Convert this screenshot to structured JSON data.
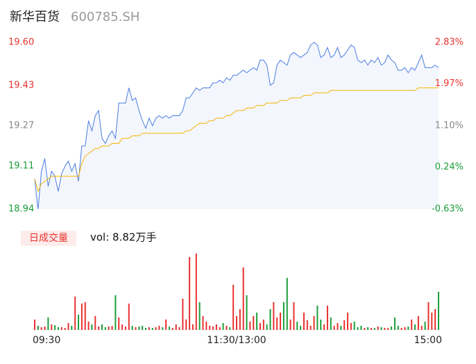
{
  "header": {
    "title": "新华百货",
    "code": "600785.SH"
  },
  "chart_data": [
    {
      "type": "line",
      "x": [
        0,
        2,
        4,
        6,
        8,
        10,
        12,
        14,
        16,
        18,
        20,
        22,
        24,
        26,
        28,
        30,
        32,
        34,
        36,
        38,
        40,
        42,
        44,
        46,
        48,
        50,
        52,
        54,
        56,
        58,
        60,
        62,
        64,
        66,
        68,
        70,
        72,
        74,
        76,
        78,
        80,
        82,
        84,
        86,
        88,
        90,
        92,
        94,
        96,
        98,
        100,
        102,
        104,
        106,
        108,
        110,
        112,
        114,
        116,
        118,
        120,
        122,
        124,
        126,
        128,
        130,
        132,
        134,
        136,
        138,
        140,
        142,
        144,
        146,
        148,
        150,
        152,
        154,
        156,
        158,
        160,
        162,
        164,
        166,
        168,
        170,
        172,
        174,
        176,
        178,
        180,
        182,
        184,
        186,
        188,
        190,
        192,
        194,
        196,
        198,
        200,
        202,
        204,
        206,
        208,
        210,
        212,
        214,
        216,
        218,
        220,
        222,
        224,
        226,
        228,
        230,
        232,
        234,
        236,
        238,
        240
      ],
      "series": [
        {
          "color": "#4a7de0",
          "values": [
            19.06,
            18.94,
            19.09,
            19.14,
            19.03,
            19.09,
            19.07,
            19.01,
            19.08,
            19.11,
            19.13,
            19.09,
            19.12,
            19.05,
            19.19,
            19.19,
            19.29,
            19.25,
            19.31,
            19.33,
            19.22,
            19.2,
            19.23,
            19.25,
            19.22,
            19.36,
            19.36,
            19.36,
            19.42,
            19.37,
            19.38,
            19.33,
            19.29,
            19.26,
            19.3,
            19.27,
            19.3,
            19.31,
            19.3,
            19.31,
            19.3,
            19.31,
            19.31,
            19.31,
            19.33,
            19.38,
            19.38,
            19.4,
            19.42,
            19.41,
            19.42,
            19.42,
            19.42,
            19.44,
            19.44,
            19.45,
            19.44,
            19.46,
            19.45,
            19.47,
            19.47,
            19.48,
            19.49,
            19.48,
            19.49,
            19.5,
            19.49,
            19.53,
            19.53,
            19.51,
            19.43,
            19.44,
            19.51,
            19.53,
            19.52,
            19.51,
            19.55,
            19.56,
            19.55,
            19.54,
            19.55,
            19.56,
            19.59,
            19.6,
            19.59,
            19.54,
            19.55,
            19.58,
            19.54,
            19.55,
            19.58,
            19.54,
            19.55,
            19.57,
            19.59,
            19.58,
            19.53,
            19.52,
            19.53,
            19.51,
            19.53,
            19.52,
            19.54,
            19.51,
            19.52,
            19.55,
            19.53,
            19.52,
            19.49,
            19.49,
            19.5,
            19.48,
            19.5,
            19.49,
            19.52,
            19.55,
            19.5,
            19.5,
            19.5,
            19.51,
            19.5
          ]
        },
        {
          "color": "#f5b400",
          "values": [
            19.06,
            19.01,
            19.04,
            19.05,
            19.06,
            19.07,
            19.07,
            19.07,
            19.07,
            19.07,
            19.07,
            19.07,
            19.07,
            19.07,
            19.12,
            19.15,
            19.16,
            19.17,
            19.18,
            19.18,
            19.19,
            19.19,
            19.19,
            19.2,
            19.2,
            19.2,
            19.22,
            19.22,
            19.22,
            19.23,
            19.23,
            19.23,
            19.24,
            19.24,
            19.24,
            19.24,
            19.24,
            19.24,
            19.24,
            19.24,
            19.24,
            19.24,
            19.24,
            19.24,
            19.24,
            19.25,
            19.25,
            19.26,
            19.27,
            19.28,
            19.28,
            19.28,
            19.29,
            19.29,
            19.3,
            19.3,
            19.3,
            19.31,
            19.31,
            19.32,
            19.33,
            19.33,
            19.33,
            19.34,
            19.34,
            19.34,
            19.35,
            19.35,
            19.35,
            19.36,
            19.36,
            19.36,
            19.36,
            19.37,
            19.37,
            19.37,
            19.38,
            19.38,
            19.38,
            19.38,
            19.39,
            19.39,
            19.39,
            19.4,
            19.4,
            19.4,
            19.4,
            19.4,
            19.41,
            19.41,
            19.41,
            19.41,
            19.41,
            19.41,
            19.41,
            19.41,
            19.41,
            19.41,
            19.41,
            19.41,
            19.41,
            19.41,
            19.41,
            19.41,
            19.41,
            19.41,
            19.41,
            19.41,
            19.41,
            19.41,
            19.41,
            19.41,
            19.41,
            19.41,
            19.42,
            19.42,
            19.42,
            19.42,
            19.42,
            19.42,
            19.42
          ]
        }
      ],
      "xlim": [
        0,
        240
      ],
      "ylim": [
        18.94,
        19.6
      ],
      "yticks": [
        {
          "value": 19.6,
          "label": "19.60"
        },
        19.43,
        19.27,
        19.11,
        18.94
      ],
      "ytick_colors": [
        "#e8312f",
        "#e8312f",
        "#888888",
        "#1a9e3a",
        "#1a9e3a"
      ],
      "y2lim": [
        -0.63,
        2.83
      ],
      "y2ticks": [
        {
          "value": 2.83,
          "label": "2.83%"
        },
        {
          "value": 1.97,
          "label": "1.97%"
        },
        {
          "value": 1.1,
          "label": "1.10%"
        },
        {
          "value": 0.24,
          "label": "0.24%"
        },
        {
          "value": -0.63,
          "label": "-0.63%"
        }
      ],
      "y2tick_colors": [
        "#e8312f",
        "#e8312f",
        "#888888",
        "#1a9e3a",
        "#1a9e3a"
      ],
      "area_color": "#f3f6fd"
    },
    {
      "type": "bar",
      "button": "日成交量",
      "label": "vol: 8.82万手",
      "x": [
        0,
        2,
        4,
        6,
        8,
        10,
        12,
        14,
        16,
        18,
        20,
        22,
        24,
        26,
        28,
        30,
        32,
        34,
        36,
        38,
        40,
        42,
        44,
        46,
        48,
        50,
        52,
        54,
        56,
        58,
        60,
        62,
        64,
        66,
        68,
        70,
        72,
        74,
        76,
        78,
        80,
        82,
        84,
        86,
        88,
        90,
        92,
        94,
        96,
        98,
        100,
        102,
        104,
        106,
        108,
        110,
        112,
        114,
        116,
        118,
        120,
        122,
        124,
        126,
        128,
        130,
        132,
        134,
        136,
        138,
        140,
        142,
        144,
        146,
        148,
        150,
        152,
        154,
        156,
        158,
        160,
        162,
        164,
        166,
        168,
        170,
        172,
        174,
        176,
        178,
        180,
        182,
        184,
        186,
        188,
        190,
        192,
        194,
        196,
        198,
        200,
        202,
        204,
        206,
        208,
        210,
        212,
        214,
        216,
        218,
        220,
        222,
        224,
        226,
        228,
        230,
        232,
        234,
        236,
        238,
        240
      ],
      "values": [
        750,
        300,
        200,
        250,
        900,
        400,
        350,
        200,
        200,
        150,
        500,
        300,
        2400,
        1100,
        1900,
        2000,
        600,
        400,
        1000,
        250,
        400,
        200,
        250,
        300,
        2500,
        900,
        400,
        250,
        1900,
        300,
        200,
        250,
        300,
        150,
        200,
        150,
        200,
        300,
        200,
        750,
        250,
        150,
        400,
        200,
        2250,
        750,
        5250,
        400,
        5500,
        2000,
        1000,
        600,
        300,
        250,
        400,
        200,
        500,
        300,
        200,
        3250,
        1000,
        1500,
        4500,
        2500,
        600,
        1000,
        1250,
        500,
        750,
        400,
        1500,
        2000,
        900,
        1250,
        2000,
        3750,
        750,
        2000,
        600,
        300,
        1250,
        700,
        300,
        1000,
        1750,
        750,
        400,
        1750,
        900,
        300,
        500,
        300,
        700,
        1250,
        500,
        600,
        200,
        300,
        150,
        200,
        150,
        150,
        250,
        200,
        150,
        150,
        250,
        900,
        300,
        150,
        200,
        250,
        750,
        400,
        1000,
        300,
        600,
        2000,
        1250,
        1500,
        2750
      ],
      "xlim": [
        0,
        240
      ],
      "ylim": [
        0,
        5500
      ],
      "xticks": [
        {
          "value": 0,
          "label": "09:30"
        },
        {
          "value": 120,
          "label": "11:30/13:00"
        },
        {
          "value": 240,
          "label": "15:00"
        }
      ],
      "up_color": "#e8312f",
      "down_color": "#1a9e3a",
      "button_color": "#fdecea"
    }
  ]
}
